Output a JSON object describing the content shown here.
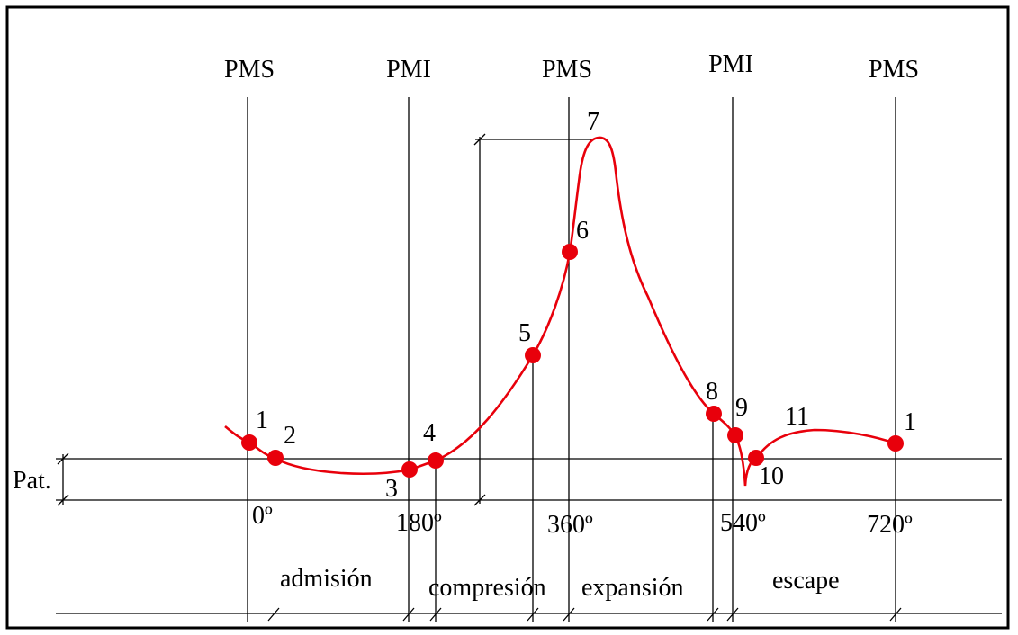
{
  "diagram": {
    "tdc_label": "PMS",
    "bdc_label": "PMI",
    "pressure_label": "Pat.",
    "angle_labels": [
      "0º",
      "180º",
      "360º",
      "540º",
      "720º"
    ],
    "stroke_labels": [
      "admisión",
      "compresión",
      "expansión",
      "escape"
    ],
    "point_labels": [
      "1",
      "2",
      "3",
      "4",
      "5",
      "6",
      "7",
      "8",
      "9",
      "10",
      "11",
      "1"
    ],
    "colors": {
      "curve": "#e8000b",
      "lines": "#000000",
      "frame": "#000000"
    }
  }
}
